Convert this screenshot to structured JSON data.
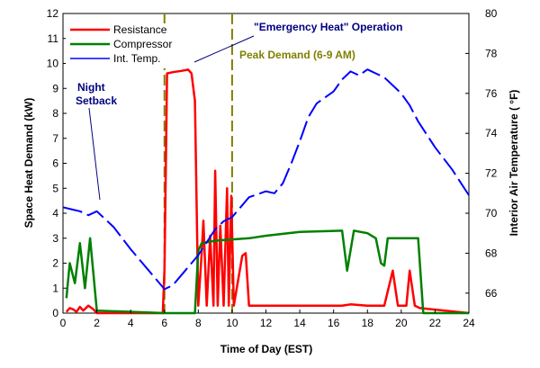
{
  "chart_data": {
    "type": "line",
    "title": "",
    "xlabel": "Time of Day (EST)",
    "ylabel": "Space Heat Demand (kW)",
    "y2label": "Interior Air Temperature ( °F)",
    "xlim": [
      0,
      24
    ],
    "ylim": [
      0,
      12
    ],
    "y2lim": [
      65,
      80
    ],
    "x_ticks": [
      0,
      2,
      4,
      6,
      8,
      10,
      12,
      14,
      16,
      18,
      20,
      22,
      24
    ],
    "y_ticks": [
      0,
      1,
      2,
      3,
      4,
      5,
      6,
      7,
      8,
      9,
      10,
      11,
      12
    ],
    "y2_ticks": [
      66,
      68,
      70,
      72,
      74,
      76,
      78,
      80
    ],
    "grid": false,
    "legend_position": "top-left",
    "colors": {
      "resistance": "#ff0000",
      "compressor": "#008000",
      "temperature": "#0000ff",
      "peak_lines": "#808000",
      "annotation_blue": "#000080",
      "annotation_olive": "#808000"
    },
    "series": [
      {
        "name": "Resistance",
        "axis": "left",
        "style": "solid",
        "points": [
          [
            0.2,
            0.05
          ],
          [
            0.4,
            0.2
          ],
          [
            0.6,
            0.15
          ],
          [
            0.8,
            0.05
          ],
          [
            1.0,
            0.25
          ],
          [
            1.2,
            0.1
          ],
          [
            1.5,
            0.3
          ],
          [
            1.8,
            0.15
          ],
          [
            2.0,
            0.0
          ],
          [
            5.9,
            0.0
          ],
          [
            6.0,
            1.8
          ],
          [
            6.15,
            9.6
          ],
          [
            6.5,
            9.65
          ],
          [
            7.0,
            9.7
          ],
          [
            7.4,
            9.75
          ],
          [
            7.6,
            9.6
          ],
          [
            7.8,
            8.5
          ],
          [
            8.0,
            0.3
          ],
          [
            8.2,
            2.4
          ],
          [
            8.3,
            3.7
          ],
          [
            8.5,
            0.3
          ],
          [
            8.7,
            3.1
          ],
          [
            8.9,
            0.3
          ],
          [
            9.0,
            5.7
          ],
          [
            9.15,
            0.3
          ],
          [
            9.3,
            3.5
          ],
          [
            9.5,
            0.3
          ],
          [
            9.7,
            5.0
          ],
          [
            9.8,
            0.3
          ],
          [
            9.95,
            4.7
          ],
          [
            10.1,
            0.3
          ],
          [
            10.6,
            2.3
          ],
          [
            10.8,
            2.4
          ],
          [
            11.0,
            0.3
          ],
          [
            16.5,
            0.3
          ],
          [
            17.0,
            0.35
          ],
          [
            18.0,
            0.3
          ],
          [
            19.0,
            0.3
          ],
          [
            19.5,
            1.7
          ],
          [
            19.8,
            0.3
          ],
          [
            20.3,
            0.3
          ],
          [
            20.5,
            1.7
          ],
          [
            20.8,
            0.3
          ],
          [
            21.1,
            0.2
          ],
          [
            24.0,
            0.0
          ]
        ]
      },
      {
        "name": "Compressor",
        "axis": "left",
        "style": "solid",
        "points": [
          [
            0.2,
            0.6
          ],
          [
            0.4,
            2.0
          ],
          [
            0.7,
            1.2
          ],
          [
            1.0,
            2.8
          ],
          [
            1.3,
            1.0
          ],
          [
            1.6,
            3.0
          ],
          [
            2.0,
            0.1
          ],
          [
            6.0,
            0.0
          ],
          [
            7.8,
            0.0
          ],
          [
            8.0,
            2.5
          ],
          [
            8.2,
            2.8
          ],
          [
            9.0,
            2.9
          ],
          [
            10.0,
            2.95
          ],
          [
            11.0,
            3.0
          ],
          [
            12.0,
            3.1
          ],
          [
            14.0,
            3.25
          ],
          [
            16.5,
            3.3
          ],
          [
            16.8,
            1.7
          ],
          [
            17.2,
            3.3
          ],
          [
            18.0,
            3.2
          ],
          [
            18.5,
            3.0
          ],
          [
            18.8,
            2.0
          ],
          [
            19.0,
            1.9
          ],
          [
            19.2,
            3.0
          ],
          [
            20.0,
            3.0
          ],
          [
            21.0,
            3.0
          ],
          [
            21.3,
            0.0
          ],
          [
            24.0,
            0.0
          ]
        ]
      },
      {
        "name": "Int. Temp.",
        "axis": "right",
        "style": "dashed",
        "points": [
          [
            0.0,
            70.3
          ],
          [
            0.5,
            70.2
          ],
          [
            1.0,
            70.1
          ],
          [
            1.5,
            69.9
          ],
          [
            2.0,
            70.1
          ],
          [
            3.0,
            69.3
          ],
          [
            4.0,
            68.2
          ],
          [
            5.0,
            67.2
          ],
          [
            6.0,
            66.2
          ],
          [
            6.5,
            66.4
          ],
          [
            7.0,
            66.9
          ],
          [
            8.0,
            67.9
          ],
          [
            9.0,
            69.2
          ],
          [
            9.5,
            69.6
          ],
          [
            10.0,
            69.8
          ],
          [
            10.5,
            70.3
          ],
          [
            11.0,
            70.8
          ],
          [
            12.0,
            71.1
          ],
          [
            12.5,
            71.0
          ],
          [
            13.0,
            71.5
          ],
          [
            13.5,
            72.5
          ],
          [
            14.0,
            73.6
          ],
          [
            14.5,
            74.8
          ],
          [
            15.0,
            75.5
          ],
          [
            16.0,
            76.1
          ],
          [
            16.5,
            76.7
          ],
          [
            17.0,
            77.1
          ],
          [
            17.5,
            76.9
          ],
          [
            18.0,
            77.2
          ],
          [
            18.5,
            77.0
          ],
          [
            19.0,
            76.8
          ],
          [
            19.5,
            76.4
          ],
          [
            20.0,
            76.0
          ],
          [
            20.5,
            75.4
          ],
          [
            21.0,
            74.6
          ],
          [
            22.0,
            73.3
          ],
          [
            23.0,
            72.2
          ],
          [
            24.0,
            70.9
          ]
        ]
      }
    ],
    "reference_lines": [
      {
        "x": 6,
        "style": "dashed"
      },
      {
        "x": 10,
        "style": "dashed"
      }
    ],
    "annotations": [
      {
        "id": "night",
        "lines": [
          "Night",
          "Setback"
        ],
        "color_key": "annotation_blue"
      },
      {
        "id": "emergency",
        "lines": [
          "\"Emergency Heat\" Operation"
        ],
        "color_key": "annotation_blue"
      },
      {
        "id": "peak",
        "lines": [
          "Peak Demand (6-9 AM)"
        ],
        "color_key": "annotation_olive"
      }
    ]
  }
}
